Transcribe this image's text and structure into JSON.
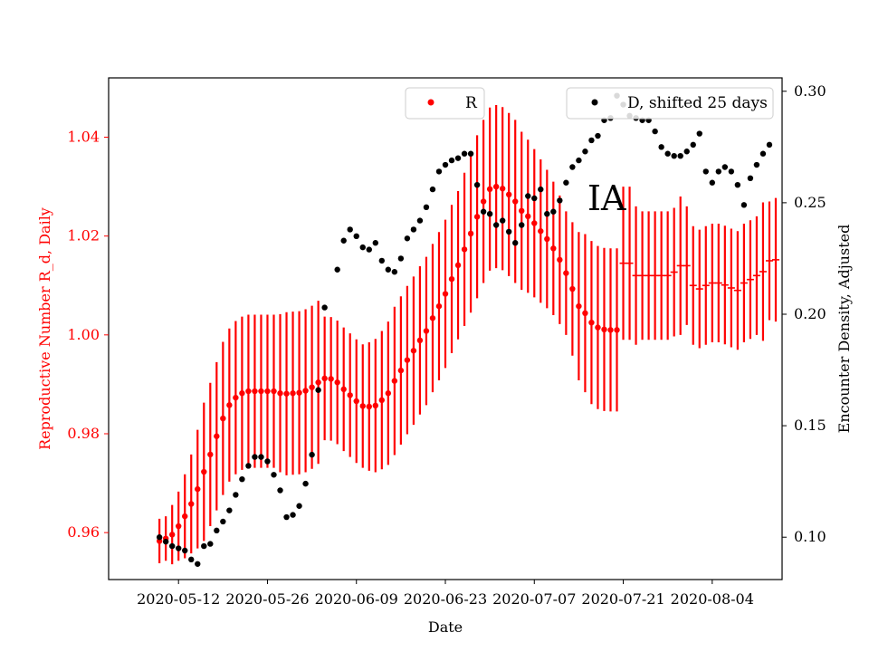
{
  "chart_data": {
    "type": "scatter",
    "annotation": "IA",
    "xlabel": "Date",
    "x_ticks": [
      "2020-05-12",
      "2020-05-26",
      "2020-06-09",
      "2020-06-23",
      "2020-07-07",
      "2020-07-21",
      "2020-08-04"
    ],
    "x_range": [
      "2020-05-01",
      "2020-08-15"
    ],
    "left_axis": {
      "label": "Reproductive Number R_d, Daily",
      "color": "#ff0000",
      "range": [
        0.9505,
        1.052
      ],
      "ticks": [
        "0.96",
        "0.98",
        "1.00",
        "1.02",
        "1.04"
      ]
    },
    "right_axis": {
      "label": "Encounter Density, Adjusted",
      "color": "#000000",
      "range": [
        0.081,
        0.306
      ],
      "ticks": [
        "0.10",
        "0.15",
        "0.20",
        "0.25",
        "0.30"
      ]
    },
    "legend": [
      {
        "label": "R",
        "color": "#ff0000",
        "position": "top-center"
      },
      {
        "label": "D, shifted 25 days",
        "color": "#000000",
        "position": "top-right"
      }
    ],
    "series": [
      {
        "name": "R",
        "axis": "left",
        "color": "#ff0000",
        "start_date": "2020-05-09",
        "values": [
          0.9583,
          0.9588,
          0.9596,
          0.9613,
          0.9633,
          0.9658,
          0.9688,
          0.9723,
          0.9758,
          0.9795,
          0.9831,
          0.9858,
          0.9873,
          0.9882,
          0.9886,
          0.9886,
          0.9886,
          0.9886,
          0.9886,
          0.9882,
          0.9881,
          0.9882,
          0.9883,
          0.9887,
          0.9894,
          0.9904,
          0.9912,
          0.9911,
          0.9904,
          0.989,
          0.9878,
          0.9866,
          0.9856,
          0.9855,
          0.9857,
          0.9868,
          0.9882,
          0.9907,
          0.9928,
          0.9949,
          0.9968,
          0.9989,
          1.0008,
          1.0034,
          1.0058,
          1.0083,
          1.0113,
          1.0141,
          1.0173,
          1.0205,
          1.0239,
          1.027,
          1.0295,
          1.03,
          1.0296,
          1.0284,
          1.027,
          1.0251,
          1.024,
          1.0226,
          1.021,
          1.0194,
          1.0175,
          1.0152,
          1.0125,
          1.0093,
          1.0058,
          1.0044,
          1.0025,
          1.0015,
          1.0011,
          1.001,
          1.001
        ],
        "error": [
          0.0045,
          0.0045,
          0.006,
          0.007,
          0.0085,
          0.01,
          0.012,
          0.014,
          0.0145,
          0.015,
          0.0155,
          0.0155,
          0.0155,
          0.0155,
          0.0155,
          0.0155,
          0.0155,
          0.0155,
          0.0155,
          0.016,
          0.0165,
          0.0165,
          0.0165,
          0.0165,
          0.0165,
          0.0165,
          0.0125,
          0.0125,
          0.0125,
          0.0125,
          0.0125,
          0.0125,
          0.0125,
          0.013,
          0.0135,
          0.014,
          0.0145,
          0.015,
          0.015,
          0.015,
          0.015,
          0.015,
          0.015,
          0.015,
          0.015,
          0.015,
          0.015,
          0.015,
          0.0155,
          0.016,
          0.0165,
          0.0165,
          0.0165,
          0.0165,
          0.0165,
          0.0165,
          0.0165,
          0.016,
          0.0155,
          0.015,
          0.0145,
          0.014,
          0.0135,
          0.013,
          0.0125,
          0.0135,
          0.015,
          0.016,
          0.0165,
          0.0165,
          0.0165,
          0.0165,
          0.0165
        ]
      },
      {
        "name": "R",
        "axis": "left",
        "color": "#ff0000",
        "marker": "hline",
        "start_date": "2020-07-21",
        "values": [
          1.0145,
          1.0145,
          1.012,
          1.012,
          1.012,
          1.012,
          1.012,
          1.012,
          1.0127,
          1.014,
          1.014,
          1.01,
          1.0093,
          1.01,
          1.0105,
          1.0105,
          1.0101,
          1.0095,
          1.009,
          1.0105,
          1.0112,
          1.012,
          1.0128,
          1.015,
          1.0152
        ],
        "error": [
          0.0155,
          0.0155,
          0.014,
          0.013,
          0.013,
          0.013,
          0.013,
          0.013,
          0.013,
          0.014,
          0.012,
          0.012,
          0.012,
          0.012,
          0.012,
          0.012,
          0.012,
          0.012,
          0.012,
          0.012,
          0.012,
          0.012,
          0.014,
          0.012,
          0.0125
        ]
      },
      {
        "name": "D, shifted 25 days",
        "axis": "right",
        "color": "#000000",
        "start_date": "2020-05-09",
        "values": [
          0.1,
          0.098,
          0.096,
          0.095,
          0.094,
          0.09,
          0.088,
          0.096,
          0.097,
          0.103,
          0.107,
          0.112,
          0.119,
          0.126,
          0.132,
          0.136,
          0.136,
          0.134,
          0.128,
          0.121,
          0.109,
          0.11,
          0.114,
          0.124,
          0.137,
          0.166,
          0.203,
          null,
          0.22,
          0.233,
          0.238,
          0.235,
          0.23,
          0.229,
          0.232,
          0.224,
          0.22,
          0.219,
          0.225,
          0.234,
          0.238,
          0.242,
          0.248,
          0.256,
          0.264,
          0.267,
          0.269,
          0.27,
          0.272,
          0.272,
          0.258,
          0.246,
          0.245,
          0.24,
          0.242,
          0.237,
          0.232,
          0.24,
          0.253,
          0.252,
          0.256,
          0.245,
          0.246,
          0.251,
          0.259,
          0.266,
          0.269,
          0.273,
          0.278,
          0.28,
          0.287,
          0.288,
          0.298,
          0.294,
          0.289,
          0.288,
          0.287,
          0.287,
          0.282,
          0.275,
          0.272,
          0.271,
          0.271,
          0.273,
          0.276,
          0.281,
          0.264,
          0.259,
          0.264,
          0.266,
          0.264,
          0.258,
          0.249,
          0.261,
          0.267,
          0.272,
          0.276
        ]
      }
    ]
  }
}
